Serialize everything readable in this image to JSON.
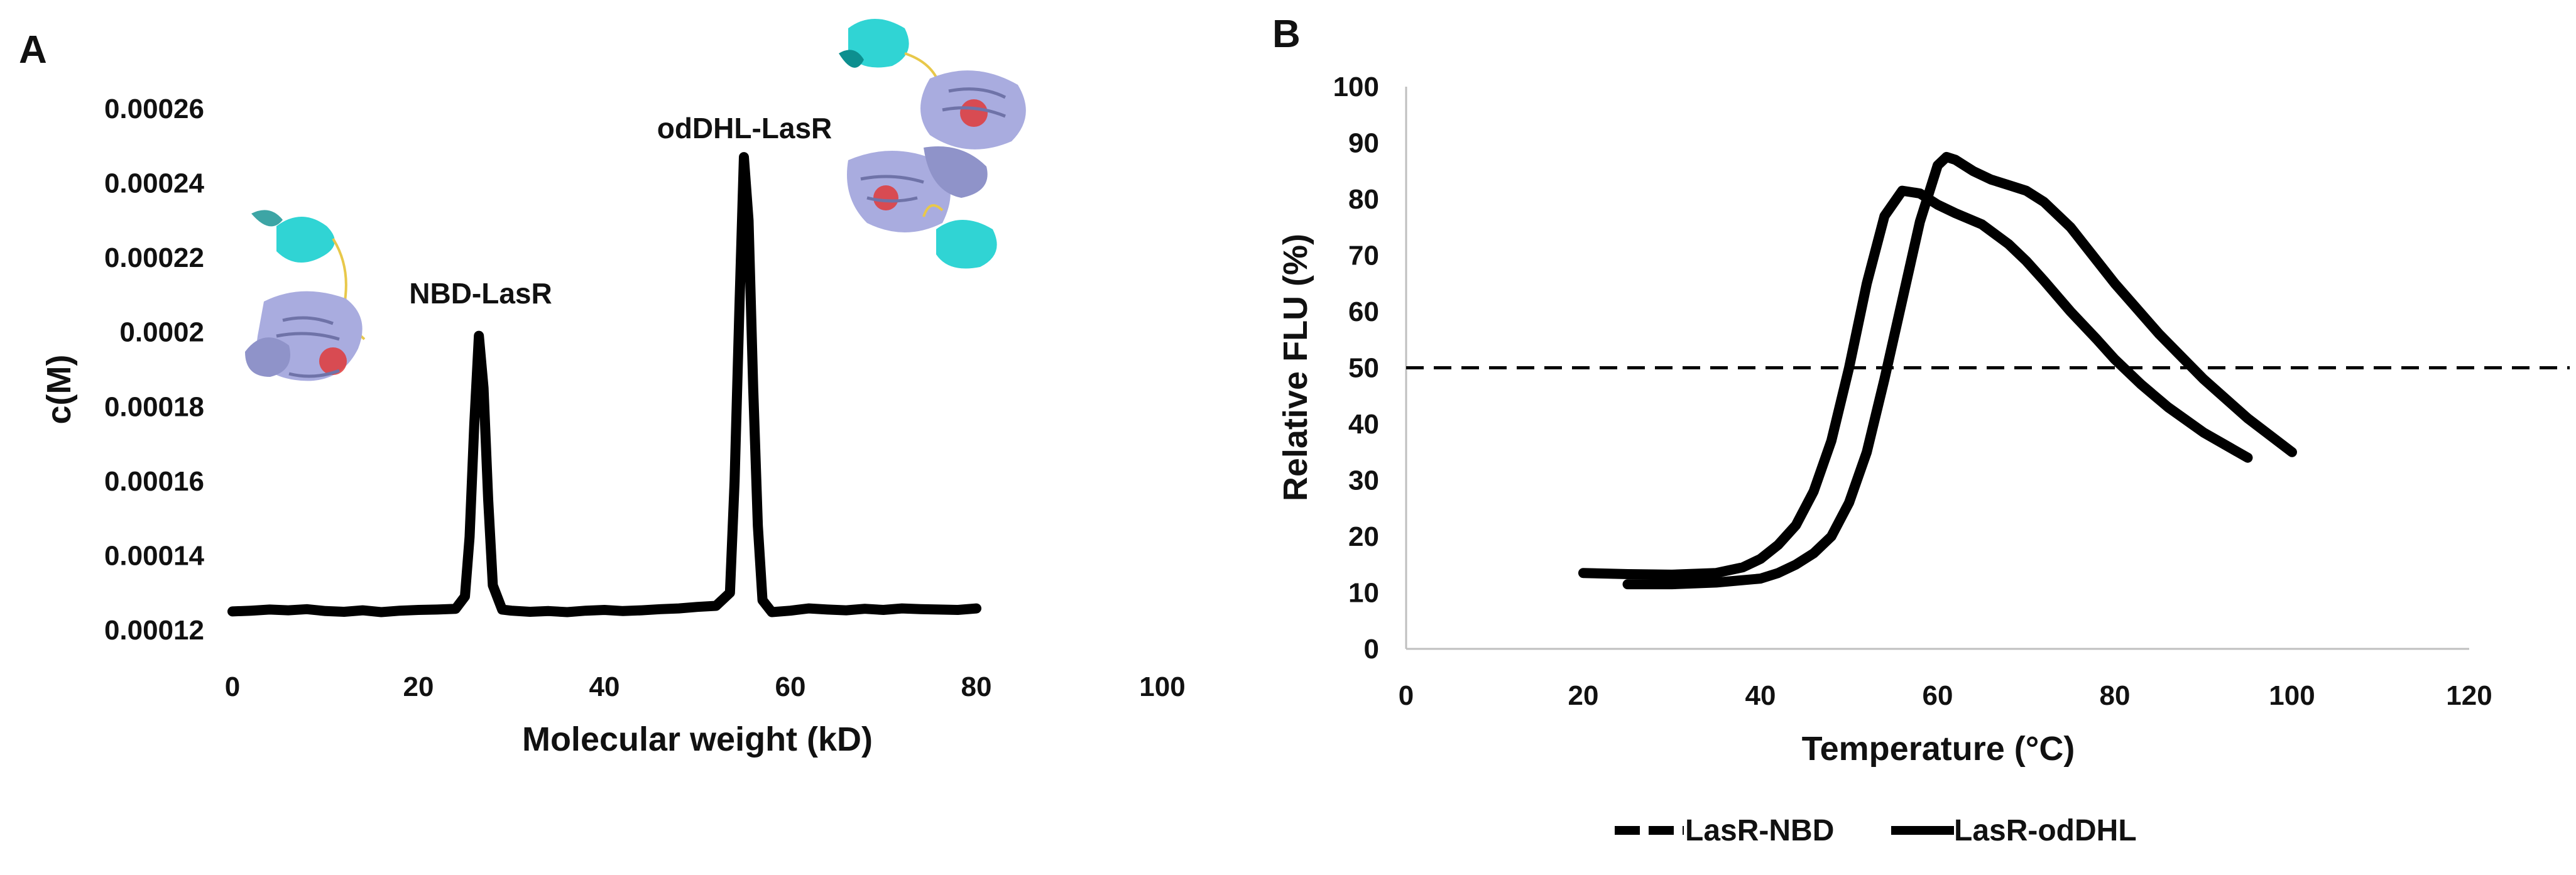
{
  "panels": {
    "A": {
      "label": "A"
    },
    "B": {
      "label": "B"
    }
  },
  "colors": {
    "line": "#000000",
    "axis": "#bfbfbf",
    "protein_helix": "#a9acdf",
    "protein_domain": "#19cfcf",
    "ligand": "#e03a3a",
    "linker": "#e8c84a"
  },
  "chart_data": [
    {
      "panel": "A",
      "type": "line",
      "title": "",
      "xlabel": "Molecular weight (kD)",
      "ylabel": "c(M)",
      "xlim": [
        0,
        100
      ],
      "ylim": [
        0.00012,
        0.00026
      ],
      "xticks": [
        "0",
        "20",
        "40",
        "60",
        "80",
        "100"
      ],
      "yticks": [
        "0.00012",
        "0.00014",
        "0.00016",
        "0.00018",
        "0.0002",
        "0.00022",
        "0.00024",
        "0.00026"
      ],
      "grid": false,
      "series": [
        {
          "x": [
            0,
            2,
            4,
            6,
            8,
            10,
            12,
            14,
            16,
            18,
            20,
            22,
            24,
            25,
            25.5,
            26,
            26.5,
            27,
            27.5,
            28,
            29,
            30,
            32,
            34,
            36,
            38,
            40,
            42,
            44,
            46,
            48,
            50,
            52,
            53.5,
            54,
            54.5,
            55,
            55.5,
            56,
            56.5,
            57,
            58,
            60,
            62,
            64,
            66,
            68,
            70,
            72,
            74,
            76,
            78,
            80
          ],
          "y": [
            0.000125,
            0.0001252,
            0.0001255,
            0.0001253,
            0.0001256,
            0.0001251,
            0.0001249,
            0.0001253,
            0.0001248,
            0.0001252,
            0.0001254,
            0.0001255,
            0.0001257,
            0.000129,
            0.000145,
            0.000175,
            0.000199,
            0.000185,
            0.000155,
            0.000132,
            0.0001255,
            0.0001252,
            0.0001249,
            0.0001251,
            0.0001248,
            0.0001252,
            0.0001254,
            0.0001251,
            0.0001253,
            0.0001256,
            0.0001258,
            0.0001262,
            0.0001265,
            0.00013,
            0.00016,
            0.000205,
            0.000247,
            0.00023,
            0.000185,
            0.000148,
            0.000128,
            0.0001248,
            0.0001252,
            0.0001258,
            0.0001255,
            0.0001253,
            0.0001257,
            0.0001254,
            0.0001258,
            0.0001256,
            0.0001255,
            0.0001254,
            0.0001258
          ]
        }
      ],
      "annotations": [
        {
          "text": "NBD-LasR",
          "x": 26,
          "y": 0.00021
        },
        {
          "text": "odDHL-LasR",
          "x": 55,
          "y": 0.000252
        }
      ]
    },
    {
      "panel": "B",
      "type": "line",
      "title": "",
      "xlabel": "Temperature (°C)",
      "ylabel": "Relative FLU (%)",
      "xlim": [
        0,
        120
      ],
      "ylim": [
        0,
        100
      ],
      "xticks": [
        "0",
        "20",
        "40",
        "60",
        "80",
        "100",
        "120"
      ],
      "yticks": [
        "0",
        "10",
        "20",
        "30",
        "40",
        "50",
        "60",
        "70",
        "80",
        "90",
        "100"
      ],
      "grid": false,
      "legend": "bottom",
      "reference_line": {
        "y": 50,
        "style": "dashed"
      },
      "series": [
        {
          "name": "LasR-NBD",
          "style": "dashed",
          "x": [
            20,
            25,
            30,
            35,
            38,
            40,
            42,
            44,
            46,
            48,
            50,
            52,
            54,
            56,
            58,
            60,
            62,
            65,
            68,
            70,
            72,
            75,
            78,
            80,
            83,
            86,
            90,
            95
          ],
          "y": [
            13.5,
            13.3,
            13.2,
            13.5,
            14.5,
            16,
            18.5,
            22,
            28,
            37,
            50,
            65,
            77,
            81.5,
            81,
            79,
            77.5,
            75.5,
            72,
            69,
            65.5,
            60,
            55,
            51.5,
            47,
            43,
            38.5,
            34
          ]
        },
        {
          "name": "LasR-odDHL",
          "style": "solid",
          "x": [
            25,
            30,
            35,
            40,
            42,
            44,
            46,
            48,
            50,
            52,
            54,
            56,
            58,
            60,
            61,
            62,
            64,
            66,
            68,
            70,
            72,
            75,
            78,
            80,
            85,
            90,
            95,
            100
          ],
          "y": [
            11.5,
            11.5,
            11.8,
            12.5,
            13.5,
            15,
            17,
            20,
            26,
            35,
            48,
            62,
            76,
            86,
            87.5,
            87,
            85,
            83.5,
            82.5,
            81.5,
            79.5,
            75,
            69,
            65,
            56,
            48,
            41,
            35
          ]
        }
      ]
    }
  ]
}
